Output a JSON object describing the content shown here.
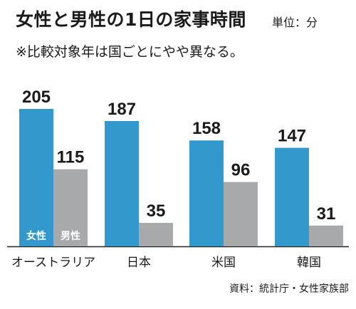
{
  "header": {
    "title": "女性と男性の1日の家事時間",
    "unit": "単位：分",
    "note": "※比較対象年は国ごとにやや異なる。"
  },
  "footer": {
    "source": "資料：統計庁・女性家族部"
  },
  "chart_data": {
    "type": "bar",
    "categories": [
      "オーストラリア",
      "日本",
      "米国",
      "韓国"
    ],
    "series": [
      {
        "name": "女性",
        "values": [
          205,
          187,
          158,
          147
        ],
        "color": "#3399cc"
      },
      {
        "name": "男性",
        "values": [
          115,
          35,
          96,
          31
        ],
        "color": "#a8a9ab"
      }
    ],
    "ylim": [
      0,
      205
    ],
    "grid": false,
    "legend": "inside-first-bars"
  }
}
